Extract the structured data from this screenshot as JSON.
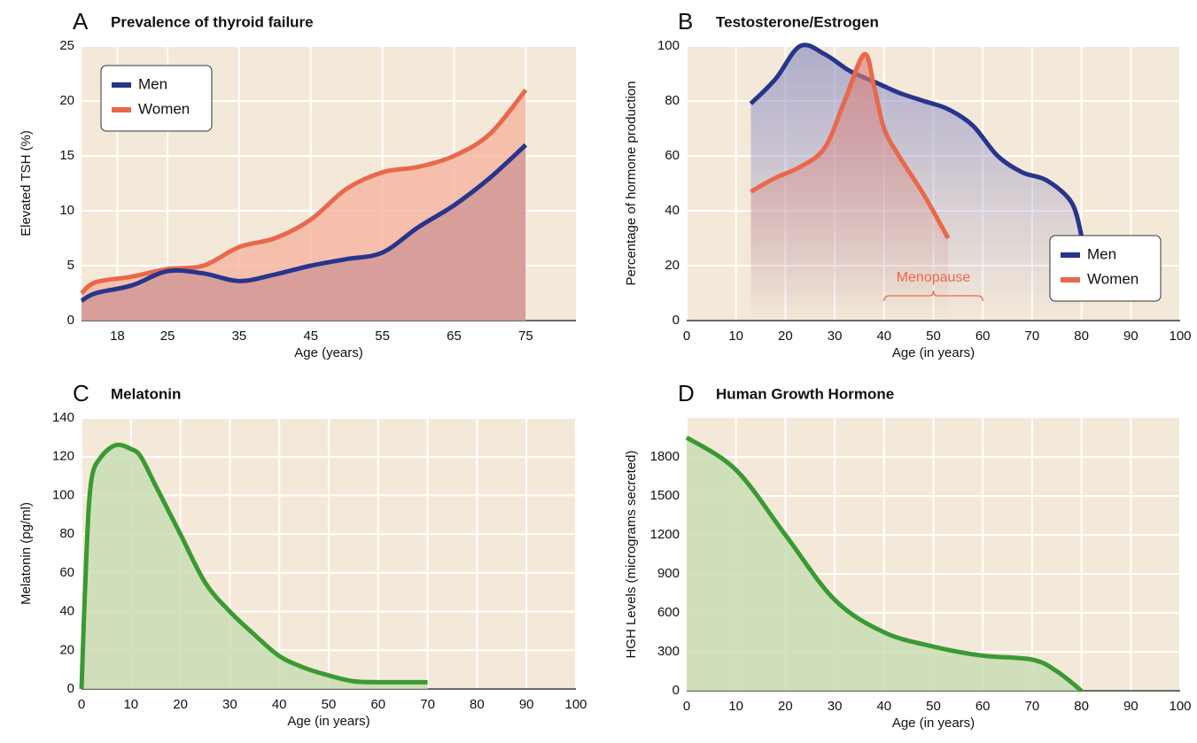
{
  "chart_data": [
    {
      "type": "line",
      "panel_label": "A",
      "title": "Prevalence of thyroid failure",
      "x_label": "Age (years)",
      "y_label": "Elevated TSH (%)",
      "xlim": [
        13,
        82
      ],
      "xticks": [
        18,
        25,
        35,
        45,
        55,
        65,
        75
      ],
      "ylim": [
        0,
        25
      ],
      "yticks": [
        0,
        5,
        10,
        15,
        20,
        25
      ],
      "grid": true,
      "legend": "upper left",
      "series": [
        {
          "name": "Women",
          "color": "#e9684a",
          "area_color": "#f5b4a0",
          "x": [
            13,
            15,
            20,
            25,
            30,
            35,
            40,
            45,
            50,
            55,
            60,
            65,
            70,
            75
          ],
          "values": [
            2.5,
            3.5,
            4,
            4.7,
            5,
            6.7,
            7.5,
            9.2,
            12,
            13.5,
            14,
            15,
            17,
            21
          ]
        },
        {
          "name": "Men",
          "color": "#27358c",
          "area_color": "#cf9696",
          "x": [
            13,
            15,
            20,
            25,
            30,
            35,
            40,
            45,
            50,
            55,
            60,
            65,
            70,
            75
          ],
          "values": [
            1.8,
            2.5,
            3.2,
            4.5,
            4.3,
            3.6,
            4.2,
            5,
            5.6,
            6.2,
            8.5,
            10.5,
            13,
            16
          ]
        }
      ]
    },
    {
      "type": "line",
      "panel_label": "B",
      "title": "Testosterone/Estrogen",
      "x_label": "Age (in years)",
      "y_label": "Percentage of hormone production",
      "xlim": [
        0,
        100
      ],
      "xticks": [
        0,
        10,
        20,
        30,
        40,
        50,
        60,
        70,
        80,
        90,
        100
      ],
      "ylim": [
        0,
        100
      ],
      "yticks": [
        0,
        20,
        40,
        60,
        80,
        100
      ],
      "grid": true,
      "legend": "lower right",
      "annotations": [
        {
          "text": "Menopause",
          "x_start": 40,
          "x_end": 60,
          "color": "#e9684a"
        }
      ],
      "series": [
        {
          "name": "Men",
          "color": "#27358c",
          "area_color": "#8e8fc4",
          "x": [
            13,
            18,
            23,
            28,
            33,
            38,
            43,
            48,
            53,
            58,
            63,
            68,
            73,
            78,
            80
          ],
          "values": [
            79,
            88,
            100,
            97,
            91,
            87,
            83,
            80,
            77,
            71,
            60,
            54,
            51,
            43,
            31
          ]
        },
        {
          "name": "Women",
          "color": "#e9684a",
          "area_color": "#d9817a",
          "x": [
            13,
            18,
            23,
            28,
            32,
            36,
            38,
            40,
            43,
            48,
            53
          ],
          "values": [
            47,
            52,
            56,
            63,
            80,
            97,
            85,
            70,
            60,
            46,
            30
          ]
        }
      ]
    },
    {
      "type": "line",
      "panel_label": "C",
      "title": "Melatonin",
      "x_label": "Age (in years)",
      "y_label": "Melatonin (pg/ml)",
      "xlim": [
        0,
        100
      ],
      "xticks": [
        0,
        10,
        20,
        30,
        40,
        50,
        60,
        70,
        80,
        90,
        100
      ],
      "ylim": [
        0,
        140
      ],
      "yticks": [
        0,
        20,
        40,
        60,
        80,
        100,
        120,
        140
      ],
      "grid": true,
      "series": [
        {
          "color": "#3a9a32",
          "area_color": "#c6dcb0",
          "x": [
            0,
            1,
            2,
            4,
            7,
            10,
            12,
            15,
            20,
            25,
            30,
            35,
            40,
            45,
            50,
            55,
            60,
            70
          ],
          "values": [
            0,
            70,
            108,
            120,
            126,
            124,
            120,
            105,
            80,
            55,
            40,
            28,
            17,
            11,
            7,
            4,
            3.5,
            3.5
          ]
        }
      ]
    },
    {
      "type": "line",
      "panel_label": "D",
      "title": "Human Growth Hormone",
      "x_label": "Age (in years)",
      "y_label": "HGH Levels (micrograms secreted)",
      "xlim": [
        0,
        100
      ],
      "xticks": [
        0,
        10,
        20,
        30,
        40,
        50,
        60,
        70,
        80,
        90,
        100
      ],
      "ylim": [
        0,
        2100
      ],
      "yticks": [
        0,
        300,
        600,
        900,
        1200,
        1500,
        1800
      ],
      "grid": true,
      "series": [
        {
          "color": "#3a9a32",
          "area_color": "#c6dcb0",
          "x": [
            0,
            10,
            20,
            30,
            40,
            50,
            60,
            70,
            75,
            80
          ],
          "values": [
            1950,
            1700,
            1200,
            700,
            450,
            340,
            270,
            240,
            150,
            0
          ]
        }
      ]
    }
  ]
}
